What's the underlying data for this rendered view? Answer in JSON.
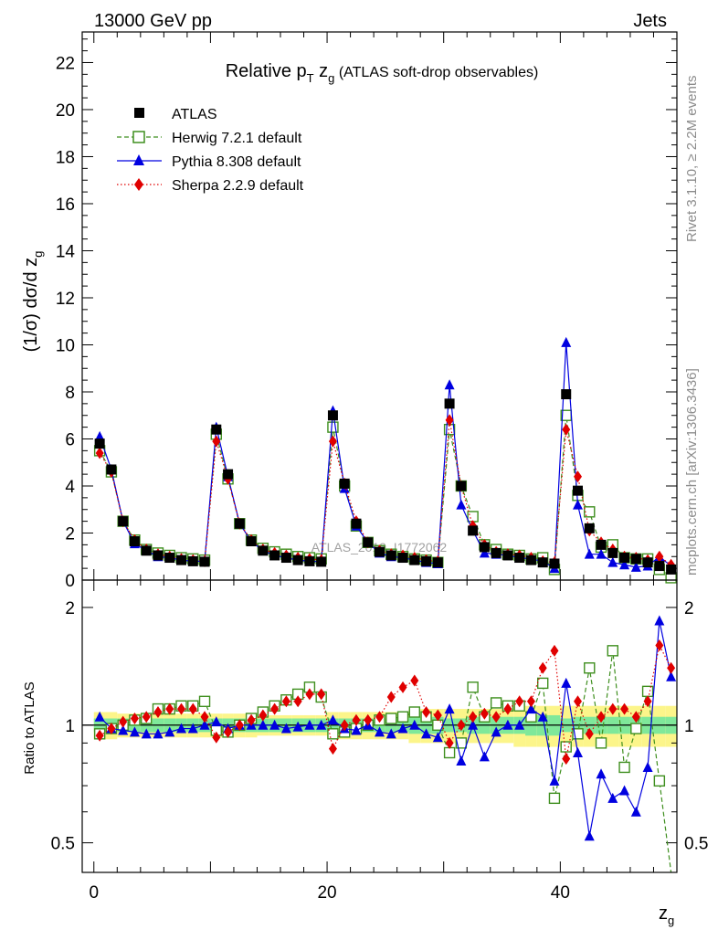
{
  "header": {
    "left": "13000 GeV pp",
    "right": "Jets"
  },
  "side_labels": {
    "rivet": "Rivet 3.1.10, ≥ 2.2M events",
    "mcplots": "mcplots.cern.ch [arXiv:1306.3436]"
  },
  "watermark": "ATLAS_2019_I1772062",
  "top_plot": {
    "title": "Relative p_T z_g (ATLAS soft-drop observables)",
    "ylabel": "(1/σ) dσ/d z_g",
    "yticks": [
      "0",
      "2",
      "4",
      "6",
      "8",
      "10",
      "12",
      "14",
      "16",
      "18",
      "20",
      "22"
    ]
  },
  "ratio_plot": {
    "ylabel": "Ratio to ATLAS",
    "yticks": [
      "0.5",
      "1",
      "2"
    ],
    "xticks": [
      "0",
      "20",
      "40"
    ],
    "xlabel": "z_g"
  },
  "legend": [
    {
      "label": "ATLAS",
      "color": "#000000",
      "marker": "square-filled"
    },
    {
      "label": "Herwig 7.2.1 default",
      "color": "#3f8f1f",
      "marker": "square-open"
    },
    {
      "label": "Pythia 8.308 default",
      "color": "#0000e0",
      "marker": "triangle-filled"
    },
    {
      "label": "Sherpa 2.2.9 default",
      "color": "#e00000",
      "marker": "diamond-filled"
    }
  ],
  "chart_data": {
    "type": "scatter",
    "x": [
      0.5,
      1.5,
      2.5,
      3.5,
      4.5,
      5.5,
      6.5,
      7.5,
      8.5,
      9.5,
      10.5,
      11.5,
      12.5,
      13.5,
      14.5,
      15.5,
      16.5,
      17.5,
      18.5,
      19.5,
      20.5,
      21.5,
      22.5,
      23.5,
      24.5,
      25.5,
      26.5,
      27.5,
      28.5,
      29.5,
      30.5,
      31.5,
      32.5,
      33.5,
      34.5,
      35.5,
      36.5,
      37.5,
      38.5,
      39.5,
      40.5,
      41.5,
      42.5,
      43.5,
      44.5,
      45.5,
      46.5,
      47.5,
      48.5,
      49.5
    ],
    "series": [
      {
        "name": "ATLAS",
        "values": [
          5.8,
          4.7,
          2.5,
          1.65,
          1.25,
          1.05,
          0.95,
          0.85,
          0.8,
          0.78,
          6.4,
          4.5,
          2.4,
          1.65,
          1.25,
          1.05,
          0.95,
          0.85,
          0.8,
          0.78,
          7.0,
          4.1,
          2.4,
          1.6,
          1.2,
          1.05,
          0.95,
          0.85,
          0.8,
          0.75,
          7.5,
          4.0,
          2.1,
          1.4,
          1.15,
          1.05,
          0.95,
          0.85,
          0.75,
          0.7,
          7.9,
          3.8,
          2.2,
          1.5,
          1.15,
          0.95,
          0.9,
          0.75,
          0.6,
          0.45
        ],
        "ratio_band_inner": [
          0.04,
          0.04,
          0.04,
          0.04,
          0.04,
          0.04,
          0.04,
          0.04,
          0.04,
          0.04,
          0.04,
          0.04,
          0.04,
          0.04,
          0.04,
          0.04,
          0.04,
          0.04,
          0.04,
          0.04,
          0.04,
          0.04,
          0.04,
          0.04,
          0.04,
          0.04,
          0.04,
          0.05,
          0.05,
          0.05,
          0.04,
          0.04,
          0.05,
          0.05,
          0.05,
          0.05,
          0.05,
          0.06,
          0.06,
          0.06,
          0.04,
          0.05,
          0.05,
          0.05,
          0.05,
          0.05,
          0.05,
          0.05,
          0.05,
          0.05
        ],
        "ratio_band_outer": [
          0.08,
          0.08,
          0.07,
          0.07,
          0.07,
          0.07,
          0.07,
          0.07,
          0.07,
          0.07,
          0.07,
          0.07,
          0.07,
          0.07,
          0.06,
          0.06,
          0.06,
          0.06,
          0.06,
          0.06,
          0.08,
          0.08,
          0.08,
          0.08,
          0.08,
          0.08,
          0.08,
          0.1,
          0.1,
          0.1,
          0.1,
          0.1,
          0.1,
          0.1,
          0.1,
          0.1,
          0.12,
          0.12,
          0.12,
          0.12,
          0.12,
          0.12,
          0.12,
          0.12,
          0.12,
          0.12,
          0.12,
          0.12,
          0.12,
          0.12
        ]
      },
      {
        "name": "Herwig 7.2.1 default",
        "values": [
          5.5,
          4.6,
          2.5,
          1.7,
          1.3,
          1.15,
          1.05,
          0.95,
          0.9,
          0.85,
          6.2,
          4.3,
          2.4,
          1.7,
          1.35,
          1.2,
          1.1,
          1.0,
          0.95,
          0.9,
          6.5,
          4.0,
          2.3,
          1.6,
          1.25,
          1.1,
          1.0,
          0.9,
          0.85,
          0.75,
          6.4,
          4.0,
          2.7,
          1.5,
          1.3,
          1.1,
          1.05,
          0.9,
          0.95,
          0.45,
          7.0,
          3.6,
          2.9,
          1.4,
          1.5,
          0.95,
          0.9,
          0.9,
          0.45,
          0.1
        ],
        "ratio": [
          0.95,
          0.98,
          1.0,
          1.03,
          1.04,
          1.1,
          1.1,
          1.12,
          1.12,
          1.15,
          0.97,
          0.96,
          1.0,
          1.04,
          1.08,
          1.12,
          1.16,
          1.2,
          1.25,
          1.18,
          0.95,
          0.96,
          0.98,
          1.0,
          1.03,
          1.04,
          1.05,
          1.08,
          1.05,
          1.0,
          0.85,
          0.9,
          1.25,
          1.05,
          1.14,
          1.12,
          1.12,
          1.05,
          1.28,
          0.65,
          0.88,
          0.95,
          1.4,
          0.9,
          1.55,
          0.78,
          0.98,
          1.22,
          0.72,
          0.2
        ]
      },
      {
        "name": "Pythia 8.308 default",
        "values": [
          6.1,
          4.7,
          2.5,
          1.55,
          1.25,
          1.0,
          0.95,
          0.85,
          0.8,
          0.8,
          6.5,
          4.4,
          2.4,
          1.65,
          1.25,
          1.05,
          0.95,
          0.85,
          0.8,
          0.78,
          7.2,
          3.9,
          2.3,
          1.6,
          1.15,
          1.0,
          0.95,
          0.85,
          0.75,
          0.7,
          8.3,
          3.2,
          2.1,
          1.15,
          1.1,
          1.05,
          0.95,
          0.9,
          0.8,
          0.5,
          10.1,
          3.2,
          1.1,
          1.1,
          0.75,
          0.65,
          0.55,
          0.6,
          1.0,
          0.6
        ],
        "ratio": [
          1.05,
          0.98,
          0.97,
          0.96,
          0.95,
          0.95,
          0.96,
          0.98,
          0.98,
          1.0,
          1.02,
          0.98,
          1.0,
          1.0,
          1.0,
          1.0,
          0.98,
          0.99,
          1.0,
          1.0,
          1.03,
          0.98,
          0.97,
          1.0,
          0.96,
          0.95,
          0.98,
          1.0,
          0.95,
          0.93,
          1.1,
          0.81,
          1.0,
          0.83,
          0.96,
          1.0,
          1.0,
          1.1,
          1.05,
          0.72,
          1.28,
          0.85,
          0.52,
          0.75,
          0.65,
          0.68,
          0.6,
          0.78,
          1.85,
          1.33
        ]
      },
      {
        "name": "Sherpa 2.2.9 default",
        "values": [
          5.4,
          4.6,
          2.5,
          1.7,
          1.3,
          1.1,
          1.0,
          0.9,
          0.85,
          0.8,
          5.9,
          4.3,
          2.4,
          1.7,
          1.3,
          1.15,
          1.05,
          0.95,
          0.9,
          0.85,
          5.9,
          4.1,
          2.5,
          1.6,
          1.25,
          1.1,
          1.05,
          0.95,
          0.85,
          0.8,
          6.8,
          4.0,
          2.3,
          1.5,
          1.2,
          1.1,
          1.05,
          0.95,
          0.8,
          0.75,
          6.4,
          4.4,
          2.1,
          1.6,
          1.3,
          1.0,
          0.95,
          0.85,
          1.0,
          0.65
        ],
        "ratio": [
          0.94,
          0.98,
          1.02,
          1.04,
          1.05,
          1.08,
          1.1,
          1.1,
          1.1,
          1.05,
          0.93,
          0.96,
          1.0,
          1.03,
          1.06,
          1.1,
          1.15,
          1.15,
          1.2,
          1.2,
          0.87,
          1.0,
          1.03,
          1.03,
          1.05,
          1.18,
          1.25,
          1.3,
          1.08,
          1.06,
          0.9,
          1.0,
          1.05,
          1.07,
          1.05,
          1.1,
          1.15,
          1.15,
          1.4,
          1.55,
          0.82,
          1.15,
          0.95,
          1.05,
          1.1,
          1.1,
          1.05,
          1.15,
          1.6,
          1.4
        ]
      }
    ],
    "xlim": [
      -1,
      50
    ],
    "ylim": [
      0,
      23.3
    ],
    "ratio_ylim": [
      0.42,
      2.35
    ],
    "ratio_log_scale": true,
    "ratio_band_colors": {
      "inner": "#7fe89a",
      "outer": "#fcf58a"
    },
    "legend_placement": "top-left"
  }
}
